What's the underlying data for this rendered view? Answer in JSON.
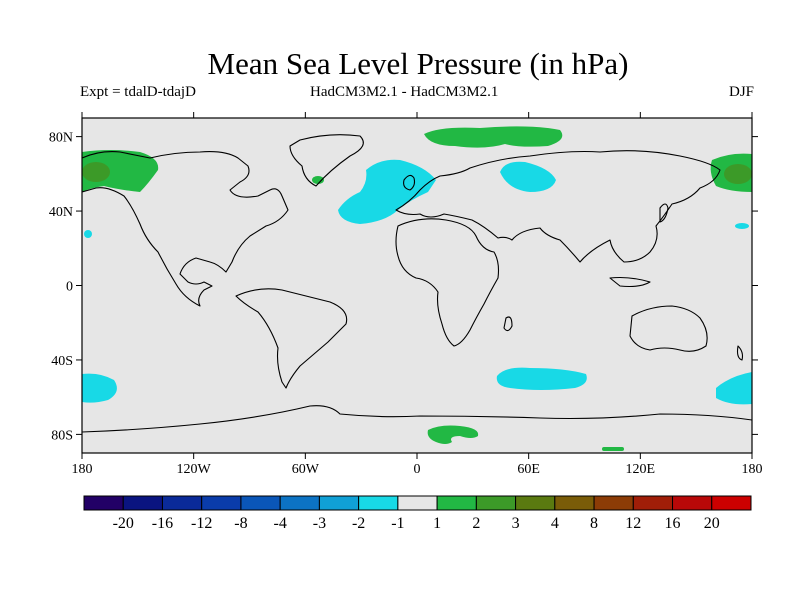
{
  "title": "Mean Sea Level Pressure (in hPa)",
  "experiment": "Expt = tdalD-tdajD",
  "model": "HadCM3M2.1 - HadCM3M2.1",
  "season": "DJF",
  "map": {
    "lat_ticks": [
      "80N",
      "40N",
      "0",
      "40S",
      "80S"
    ],
    "lon_ticks": [
      "180",
      "120W",
      "60W",
      "0",
      "60E",
      "120E",
      "180"
    ],
    "background_color": "#e6e6e6"
  },
  "colorbar": {
    "labels": [
      "-20",
      "-16",
      "-12",
      "-8",
      "-4",
      "-3",
      "-2",
      "-1",
      "1",
      "2",
      "3",
      "4",
      "8",
      "12",
      "16",
      "20"
    ],
    "colors": [
      "#220066",
      "#0a1480",
      "#0a2a99",
      "#0a3caa",
      "#0a56b8",
      "#0c73c4",
      "#10a0d6",
      "#18d9e6",
      "#e6e6e6",
      "#22b844",
      "#3c9a28",
      "#5a7a10",
      "#7a5c08",
      "#8c3c06",
      "#a01e08",
      "#b80808",
      "#cc0000"
    ]
  }
}
